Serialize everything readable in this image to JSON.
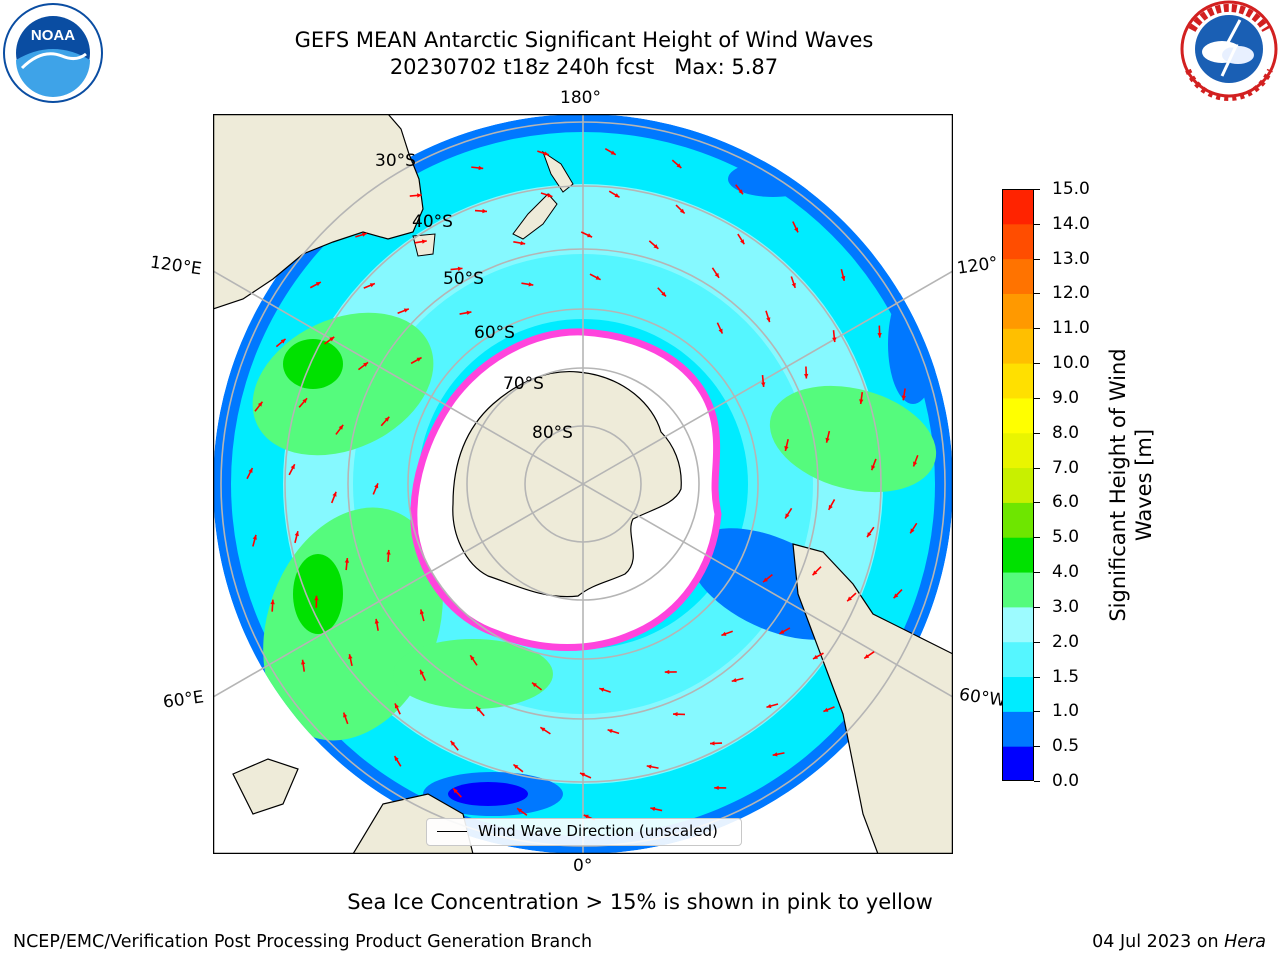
{
  "title": {
    "line1": "GEFS MEAN Antarctic Significant Height of Wind Waves",
    "line2": "20230702 t18z 240h fcst   Max: 5.87"
  },
  "logos": {
    "noaa": {
      "text": "NOAA",
      "ring_text": "NATIONAL OCEANIC AND ATMOSPHERIC ADMINISTRATION · U.S. DEPARTMENT OF COMMERCE",
      "color": "#0a4da2"
    },
    "nws": {
      "ring_text": "NATIONAL WEATHER SERVICE",
      "color": "#d22020"
    }
  },
  "map": {
    "longitude_labels": {
      "top": "180°",
      "bottom": "0°",
      "left_upper": "120°E",
      "left_lower": "60°E",
      "right_upper": "120°",
      "right_lower": "60°W"
    },
    "latitude_labels": [
      "30°S",
      "40°S",
      "50°S",
      "60°S",
      "70°S",
      "80°S"
    ],
    "legend": "Wind Wave Direction (unscaled)",
    "colors": {
      "land": "#eeebd9",
      "ocean_low": "#0033ff",
      "ocean_mid": "#00e5ff",
      "ocean_high": "#33ff33",
      "ice_edge": "#ff44dd",
      "arrow": "#ff0000",
      "grid": "#b5b5b5"
    }
  },
  "colorbar": {
    "label": "Significant Height of Wind Waves [m]",
    "ticks": [
      "15.0",
      "14.0",
      "13.0",
      "12.0",
      "11.0",
      "10.0",
      "9.0",
      "8.0",
      "7.0",
      "6.0",
      "5.0",
      "4.0",
      "3.0",
      "2.0",
      "1.5",
      "1.0",
      "0.5",
      "0.0"
    ],
    "colors": [
      "#0000ff",
      "#0078ff",
      "#00ecff",
      "#55f6ff",
      "#9dfbff",
      "#55fb7d",
      "#00e100",
      "#6ee600",
      "#c8f000",
      "#e9f500",
      "#ffff00",
      "#ffe000",
      "#ffbf00",
      "#ff9900",
      "#ff7300",
      "#ff4d00",
      "#ff2300"
    ]
  },
  "caption": "Sea Ice Concentration > 15% is shown in pink to yellow",
  "footer": {
    "left": "NCEP/EMC/Verification Post Processing Product Generation Branch",
    "date": "04 Jul 2023 on ",
    "host": "Hera"
  }
}
